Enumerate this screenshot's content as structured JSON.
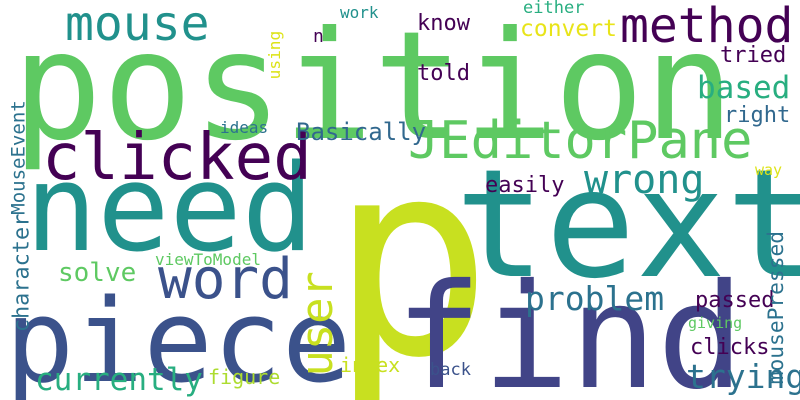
{
  "palette": {
    "dark_purple": "#440154",
    "indigo": "#3b528b",
    "navy": "#414487",
    "slate_blue": "#31688e",
    "steel_teal": "#2c728e",
    "teal": "#21918c",
    "sea_green": "#28ae80",
    "green": "#5ec962",
    "lime": "#addc30",
    "yellow_green": "#c8e020",
    "yellow": "#dde318",
    "light_yellow": "#e8e419"
  },
  "words": [
    {
      "text": "p",
      "color": "#c8e020",
      "vertical": false
    },
    {
      "text": "position",
      "color": "#5ec962",
      "vertical": false
    },
    {
      "text": "find",
      "color": "#414487",
      "vertical": false
    },
    {
      "text": "text",
      "color": "#21918c",
      "vertical": false
    },
    {
      "text": "need",
      "color": "#21918c",
      "vertical": false
    },
    {
      "text": "piece",
      "color": "#3b528b",
      "vertical": false
    },
    {
      "text": "JEditorPane",
      "color": "#5ec962",
      "vertical": false
    },
    {
      "text": "clicked",
      "color": "#440154",
      "vertical": false
    },
    {
      "text": "method",
      "color": "#440154",
      "vertical": false
    },
    {
      "text": "mouse",
      "color": "#21918c",
      "vertical": false
    },
    {
      "text": "word",
      "color": "#3b528b",
      "vertical": false
    },
    {
      "text": "user",
      "color": "#c8e020",
      "vertical": true
    },
    {
      "text": "wrong",
      "color": "#21918c",
      "vertical": false
    },
    {
      "text": "trying",
      "color": "#2c728e",
      "vertical": false
    },
    {
      "text": "problem",
      "color": "#2c728e",
      "vertical": false
    },
    {
      "text": "currently",
      "color": "#28ae80",
      "vertical": false
    },
    {
      "text": "based",
      "color": "#28ae80",
      "vertical": false
    },
    {
      "text": "solve",
      "color": "#5ec962",
      "vertical": false
    },
    {
      "text": "Basically",
      "color": "#31688e",
      "vertical": false
    },
    {
      "text": "convert",
      "color": "#e8e419",
      "vertical": false
    },
    {
      "text": "know",
      "color": "#440154",
      "vertical": false
    },
    {
      "text": "told",
      "color": "#440154",
      "vertical": false
    },
    {
      "text": "tried",
      "color": "#440154",
      "vertical": false
    },
    {
      "text": "right",
      "color": "#31688e",
      "vertical": false
    },
    {
      "text": "easily",
      "color": "#440154",
      "vertical": false
    },
    {
      "text": "passed",
      "color": "#440154",
      "vertical": false
    },
    {
      "text": "clicks",
      "color": "#440154",
      "vertical": false
    },
    {
      "text": "figure",
      "color": "#addc30",
      "vertical": false
    },
    {
      "text": "index",
      "color": "#c8e020",
      "vertical": false
    },
    {
      "text": "back",
      "color": "#3b528b",
      "vertical": false
    },
    {
      "text": "mousePressed",
      "color": "#2c728e",
      "vertical": true
    },
    {
      "text": "character",
      "color": "#2c728e",
      "vertical": true
    },
    {
      "text": "MouseEvent",
      "color": "#2c728e",
      "vertical": true
    },
    {
      "text": "viewToModel",
      "color": "#5ec962",
      "vertical": false
    },
    {
      "text": "ideas",
      "color": "#2c728e",
      "vertical": false
    },
    {
      "text": "either",
      "color": "#28ae80",
      "vertical": false
    },
    {
      "text": "work",
      "color": "#21918c",
      "vertical": false
    },
    {
      "text": "using",
      "color": "#dde318",
      "vertical": true
    },
    {
      "text": "way",
      "color": "#dde318",
      "vertical": false
    },
    {
      "text": "giving",
      "color": "#5ec962",
      "vertical": false
    },
    {
      "text": "n",
      "color": "#440154",
      "vertical": false
    }
  ]
}
